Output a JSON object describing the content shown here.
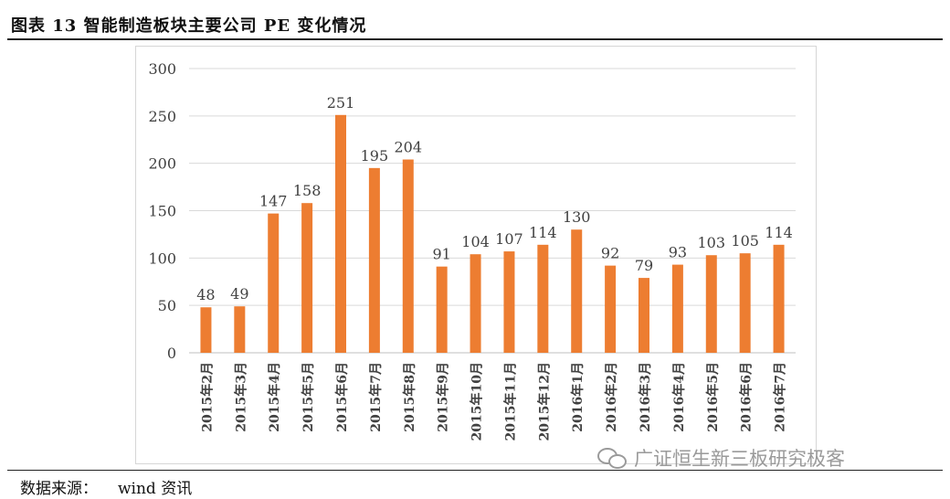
{
  "header": {
    "title": "图表 13  智能制造板块主要公司 PE 变化情况"
  },
  "footer": {
    "source_label": "数据来源：",
    "source_value": "wind 资讯"
  },
  "watermark": {
    "text": "广证恒生新三板研究极客",
    "icon": "wechat-icon"
  },
  "colors": {
    "bar": "#ED7D31",
    "grid": "#D9D9D9",
    "axis": "#BFBFBF",
    "text": "#404040"
  },
  "chart_data": {
    "type": "bar",
    "title": "",
    "xlabel": "",
    "ylabel": "",
    "ylim": [
      0,
      300
    ],
    "yticks": [
      0,
      50,
      100,
      150,
      200,
      250,
      300
    ],
    "grid": true,
    "categories": [
      "2015年2月",
      "2015年3月",
      "2015年4月",
      "2015年5月",
      "2015年6月",
      "2015年7月",
      "2015年8月",
      "2015年9月",
      "2015年10月",
      "2015年11月",
      "2015年12月",
      "2016年1月",
      "2016年2月",
      "2016年3月",
      "2016年4月",
      "2016年5月",
      "2016年6月",
      "2016年7月"
    ],
    "values": [
      48,
      49,
      147,
      158,
      251,
      195,
      204,
      91,
      104,
      107,
      114,
      130,
      92,
      79,
      93,
      103,
      105,
      114
    ]
  }
}
